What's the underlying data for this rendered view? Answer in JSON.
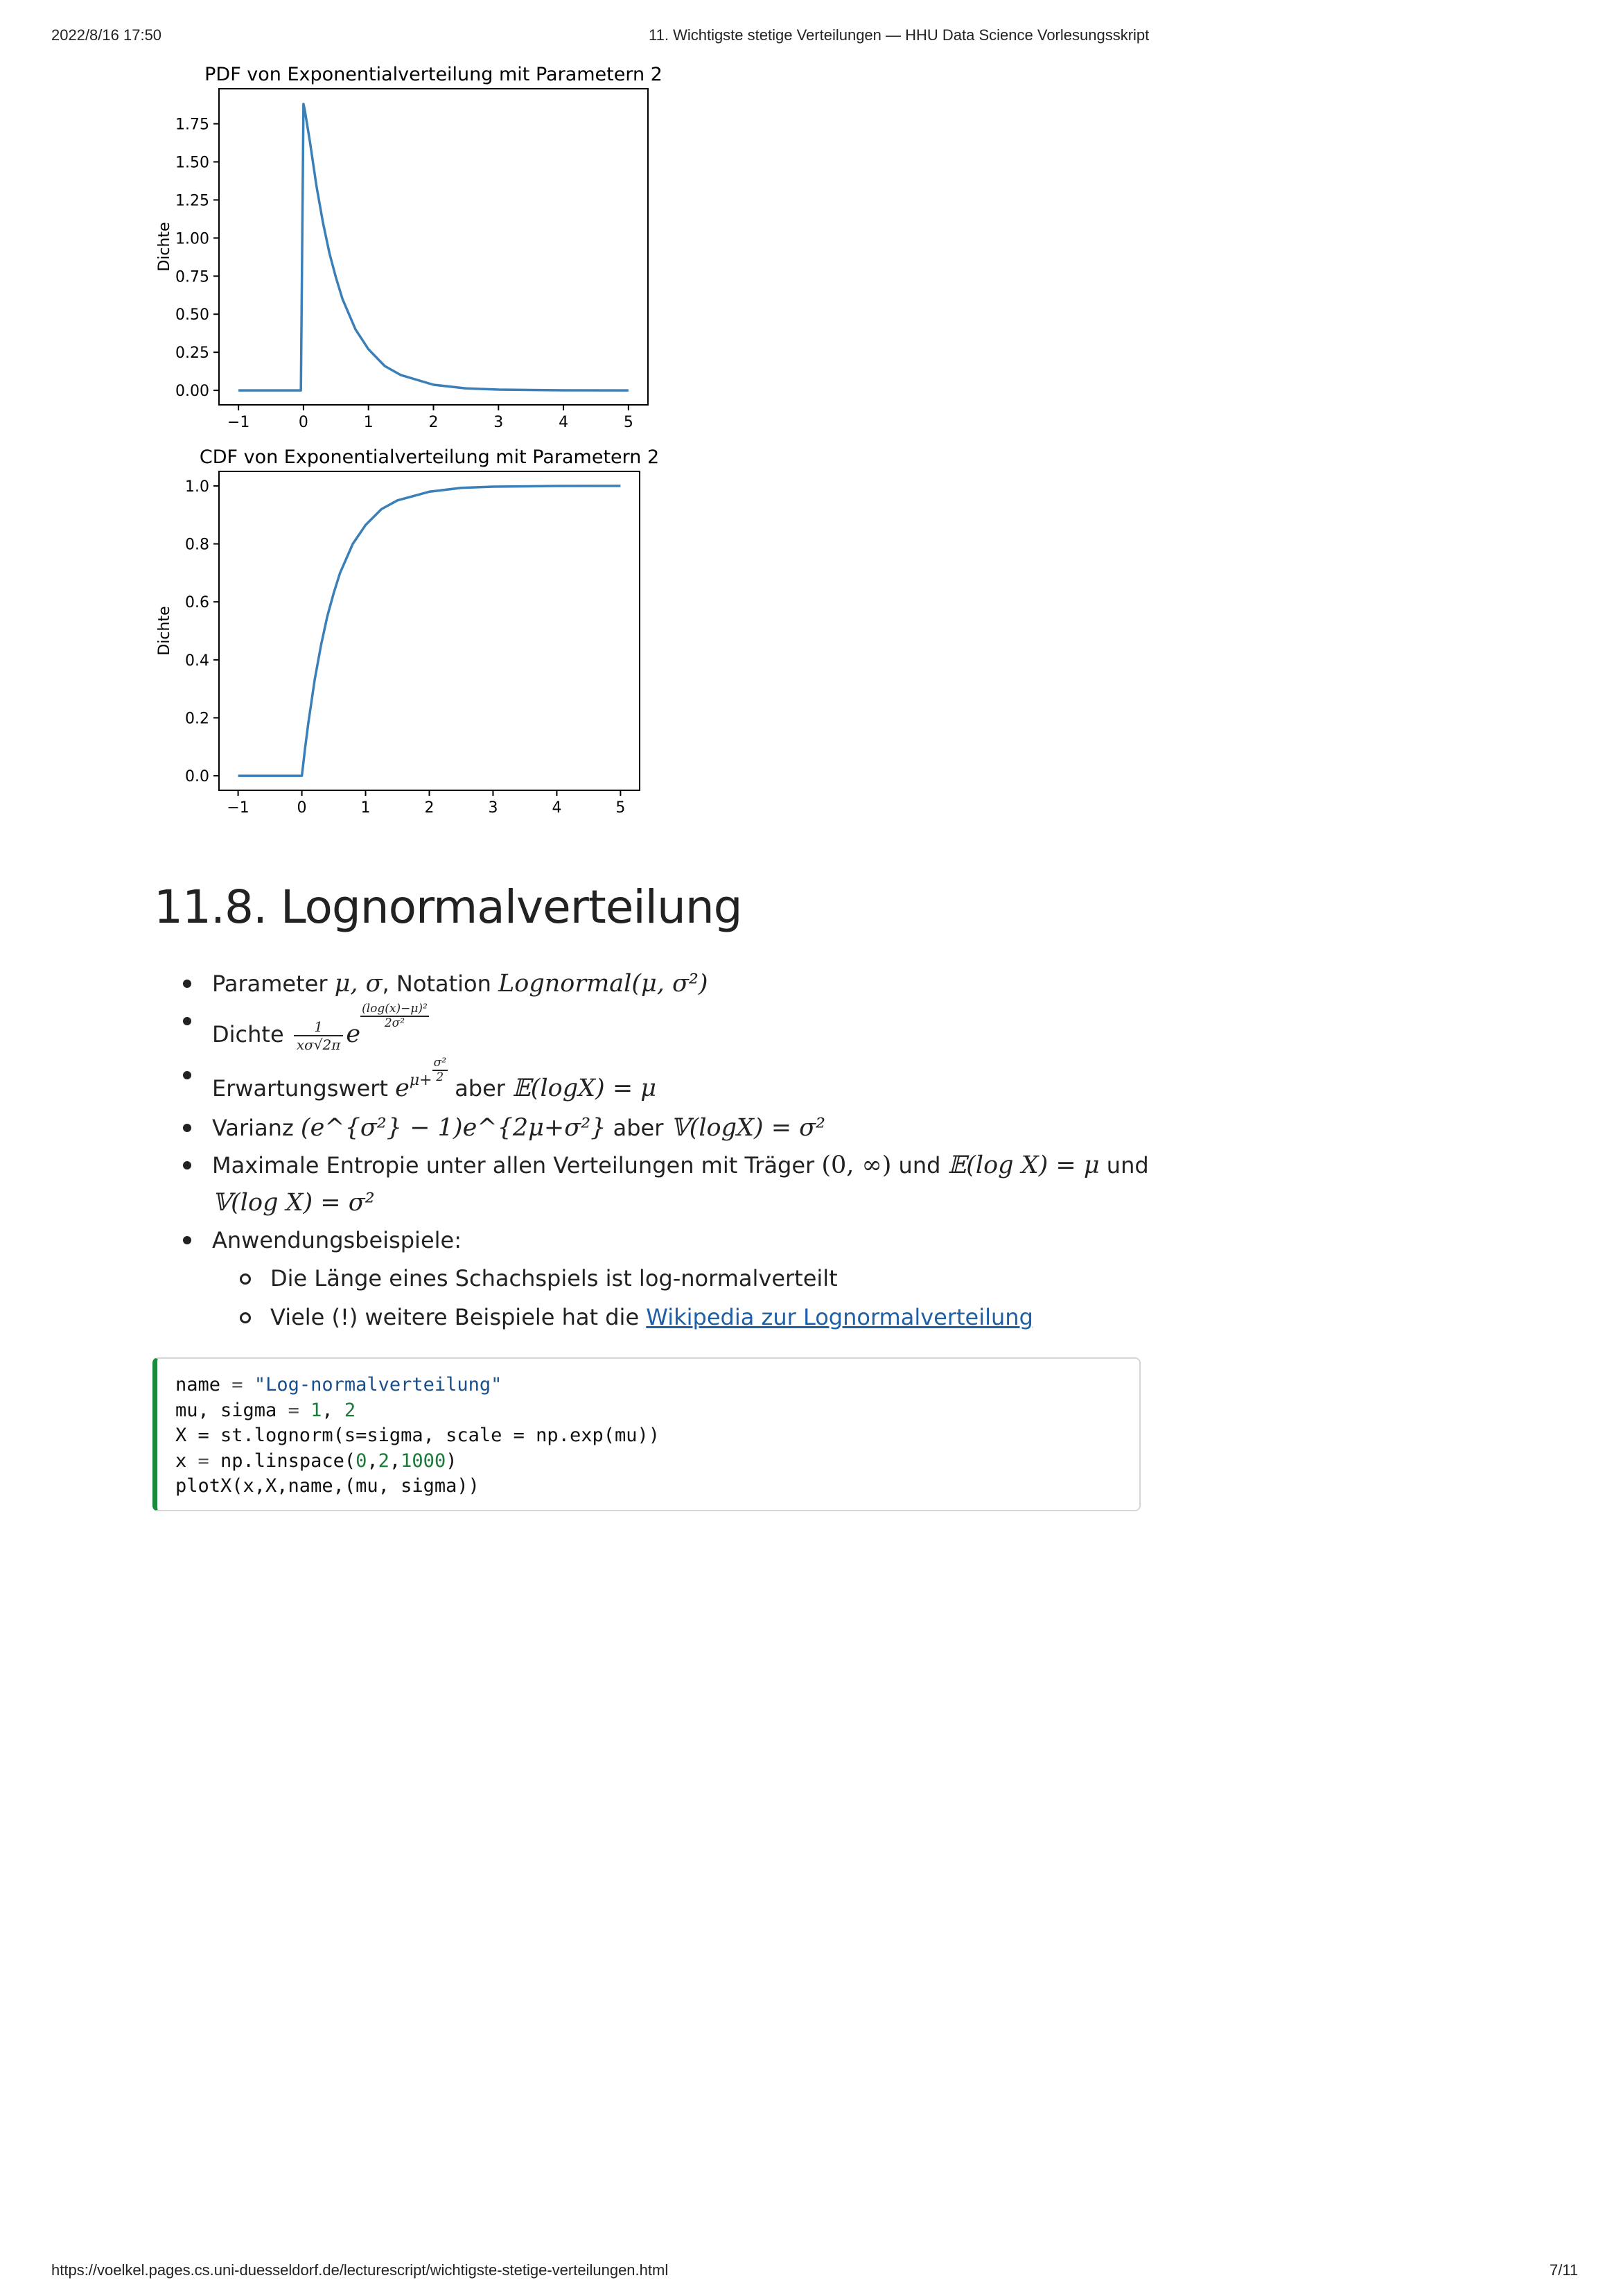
{
  "header": {
    "datetime": "2022/8/16 17:50",
    "title": "11. Wichtigste stetige Verteilungen — HHU Data Science Vorlesungsskript"
  },
  "footer": {
    "url": "https://voelkel.pages.cs.uni-duesseldorf.de/lecturescript/wichtigste-stetige-verteilungen.html",
    "page": "7/11"
  },
  "chart_data": [
    {
      "type": "line",
      "title": "PDF von Exponentialverteilung mit Parametern 2",
      "xlabel": "",
      "ylabel": "Dichte",
      "xlim": [
        -1.3,
        5.3
      ],
      "ylim": [
        -0.095,
        1.98
      ],
      "xticks": [
        -1,
        0,
        1,
        2,
        3,
        4,
        5
      ],
      "xtick_labels": [
        "−1",
        "0",
        "1",
        "2",
        "3",
        "4",
        "5"
      ],
      "yticks": [
        0.0,
        0.25,
        0.5,
        0.75,
        1.0,
        1.25,
        1.5,
        1.75
      ],
      "ytick_labels": [
        "0.00",
        "0.25",
        "0.50",
        "0.75",
        "1.00",
        "1.25",
        "1.50",
        "1.75"
      ],
      "grid": false,
      "color": "#3a7fb8",
      "x": [
        -1,
        -0.04,
        0.0,
        0.02,
        0.1,
        0.2,
        0.3,
        0.4,
        0.5,
        0.6,
        0.8,
        1.0,
        1.25,
        1.5,
        2.0,
        2.5,
        3.0,
        4.0,
        5.0
      ],
      "y": [
        0,
        0,
        1.88,
        1.84,
        1.63,
        1.34,
        1.1,
        0.9,
        0.74,
        0.6,
        0.4,
        0.27,
        0.16,
        0.1,
        0.037,
        0.013,
        0.005,
        0.0007,
        0.0001
      ]
    },
    {
      "type": "line",
      "title": "CDF von Exponentialverteilung mit Parametern 2",
      "xlabel": "",
      "ylabel": "Dichte",
      "xlim": [
        -1.3,
        5.3
      ],
      "ylim": [
        -0.05,
        1.05
      ],
      "xticks": [
        -1,
        0,
        1,
        2,
        3,
        4,
        5
      ],
      "xtick_labels": [
        "−1",
        "0",
        "1",
        "2",
        "3",
        "4",
        "5"
      ],
      "yticks": [
        0.0,
        0.2,
        0.4,
        0.6,
        0.8,
        1.0
      ],
      "ytick_labels": [
        "0.0",
        "0.2",
        "0.4",
        "0.6",
        "0.8",
        "1.0"
      ],
      "grid": false,
      "color": "#3a7fb8",
      "x": [
        -1,
        0.0,
        0.05,
        0.1,
        0.2,
        0.3,
        0.4,
        0.5,
        0.6,
        0.8,
        1.0,
        1.25,
        1.5,
        2.0,
        2.5,
        3.0,
        4.0,
        5.0
      ],
      "y": [
        0,
        0,
        0.095,
        0.18,
        0.33,
        0.45,
        0.55,
        0.63,
        0.7,
        0.8,
        0.865,
        0.92,
        0.95,
        0.98,
        0.993,
        0.9975,
        0.9997,
        1.0
      ]
    }
  ],
  "section": {
    "title": "11.8. Lognormalverteilung",
    "bullets": {
      "parameter_label": "Parameter",
      "parameter_math": "μ, σ",
      "notation_label": ", Notation",
      "notation_math": "Lognormal(μ, σ²)",
      "dichte_label": "Dichte",
      "dichte_num": "1",
      "dichte_den": "xσ√2π",
      "dichte_e": "e",
      "dichte_exp_num": "(log(x)−μ)²",
      "dichte_exp_den": "2σ²",
      "erwartung_label": "Erwartungswert",
      "erwartung_math": "e",
      "erwartung_exp": "μ+",
      "erwartung_exp_num": "σ²",
      "erwartung_exp_den": "2",
      "erwartung_aber": "aber",
      "erwartung_rhs": "𝔼(logX) = μ",
      "varianz_label": "Varianz",
      "varianz_math": "(e^{σ²} − 1)e^{2μ+σ²}",
      "varianz_aber": "aber",
      "varianz_rhs": "𝕍(logX) = σ²",
      "entropie_text1": "Maximale Entropie unter allen Verteilungen mit Träger",
      "entropie_math1": "(0, ∞)",
      "entropie_und1": "und",
      "entropie_math2": "𝔼(log X) = μ",
      "entropie_und2": "und",
      "entropie_math3": "𝕍(log X) = σ²",
      "beispiele_label": "Anwendungsbeispiele:",
      "sub1": "Die Länge eines Schachspiels ist log-normalverteilt",
      "sub2_pre": "Viele (!) weitere Beispiele hat die",
      "sub2_link": "Wikipedia zur Lognormalverteilung"
    }
  },
  "code": {
    "lines": [
      "name = \"Log-normalverteilung\"",
      "mu, sigma = 1, 2",
      "X = st.lognorm(s=sigma, scale = np.exp(mu))",
      "x = np.linspace(0,2,1000)",
      "plotX(x,X,name,(mu, sigma))"
    ]
  }
}
